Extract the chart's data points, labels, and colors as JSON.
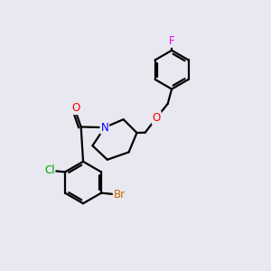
{
  "bg_color": "#e8e8f0",
  "bond_color": "#000000",
  "atom_colors": {
    "F": "#ee00ee",
    "O": "#ff0000",
    "N": "#0000ff",
    "Cl": "#00aa00",
    "Br": "#cc6600",
    "C": "#000000"
  },
  "line_width": 1.6,
  "figsize": [
    3.0,
    3.0
  ],
  "dpi": 100,
  "xlim": [
    0,
    10
  ],
  "ylim": [
    0,
    10
  ]
}
